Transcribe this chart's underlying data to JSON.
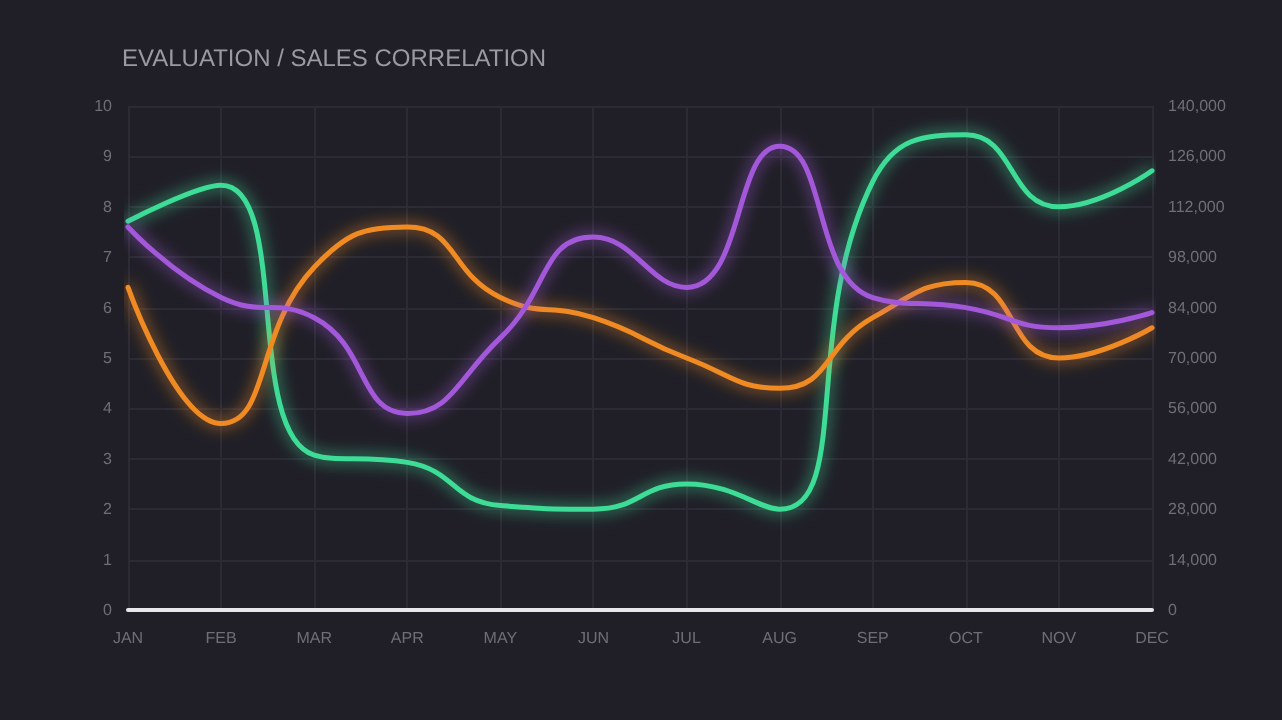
{
  "chart_data": {
    "type": "line",
    "title": "EVALUATION / SALES CORRELATION",
    "categories": [
      "JAN",
      "FEB",
      "MAR",
      "APR",
      "MAY",
      "JUN",
      "JUL",
      "AUG",
      "SEP",
      "OCT",
      "NOV",
      "DEC"
    ],
    "series": [
      {
        "color": "#3ddc97",
        "axis": "y2",
        "values": [
          108000,
          118000,
          43000,
          41000,
          29000,
          28000,
          35000,
          28000,
          119000,
          132000,
          112000,
          122000
        ]
      },
      {
        "color": "#f08a24",
        "values": [
          6.4,
          3.7,
          6.8,
          7.6,
          6.2,
          5.8,
          5.0,
          4.4,
          5.8,
          6.5,
          5.0,
          5.6
        ]
      },
      {
        "color": "#a259d9",
        "values": [
          7.6,
          6.2,
          5.8,
          3.9,
          5.4,
          7.4,
          6.4,
          9.2,
          6.2,
          6.0,
          5.6,
          5.9
        ]
      }
    ],
    "ylim": [
      0,
      10
    ],
    "yticks": [
      0,
      1,
      2,
      3,
      4,
      5,
      6,
      7,
      8,
      9,
      10
    ],
    "y2lim": [
      0,
      140000
    ],
    "y2ticks": [
      0,
      {
        "value": 14000,
        "label": "14,000"
      },
      {
        "value": 28000,
        "label": "28,000"
      },
      {
        "value": 42000,
        "label": "42,000"
      },
      {
        "value": 56000,
        "label": "56,000"
      },
      {
        "value": 70000,
        "label": "70,000"
      },
      {
        "value": 84000,
        "label": "84,000"
      },
      {
        "value": 98000,
        "label": "98,000"
      },
      {
        "value": 112000,
        "label": "112,000"
      },
      {
        "value": 126000,
        "label": "126,000"
      },
      {
        "value": 140000,
        "label": "140,000"
      }
    ],
    "grid": true,
    "marker": "none",
    "line_style": "solid"
  }
}
